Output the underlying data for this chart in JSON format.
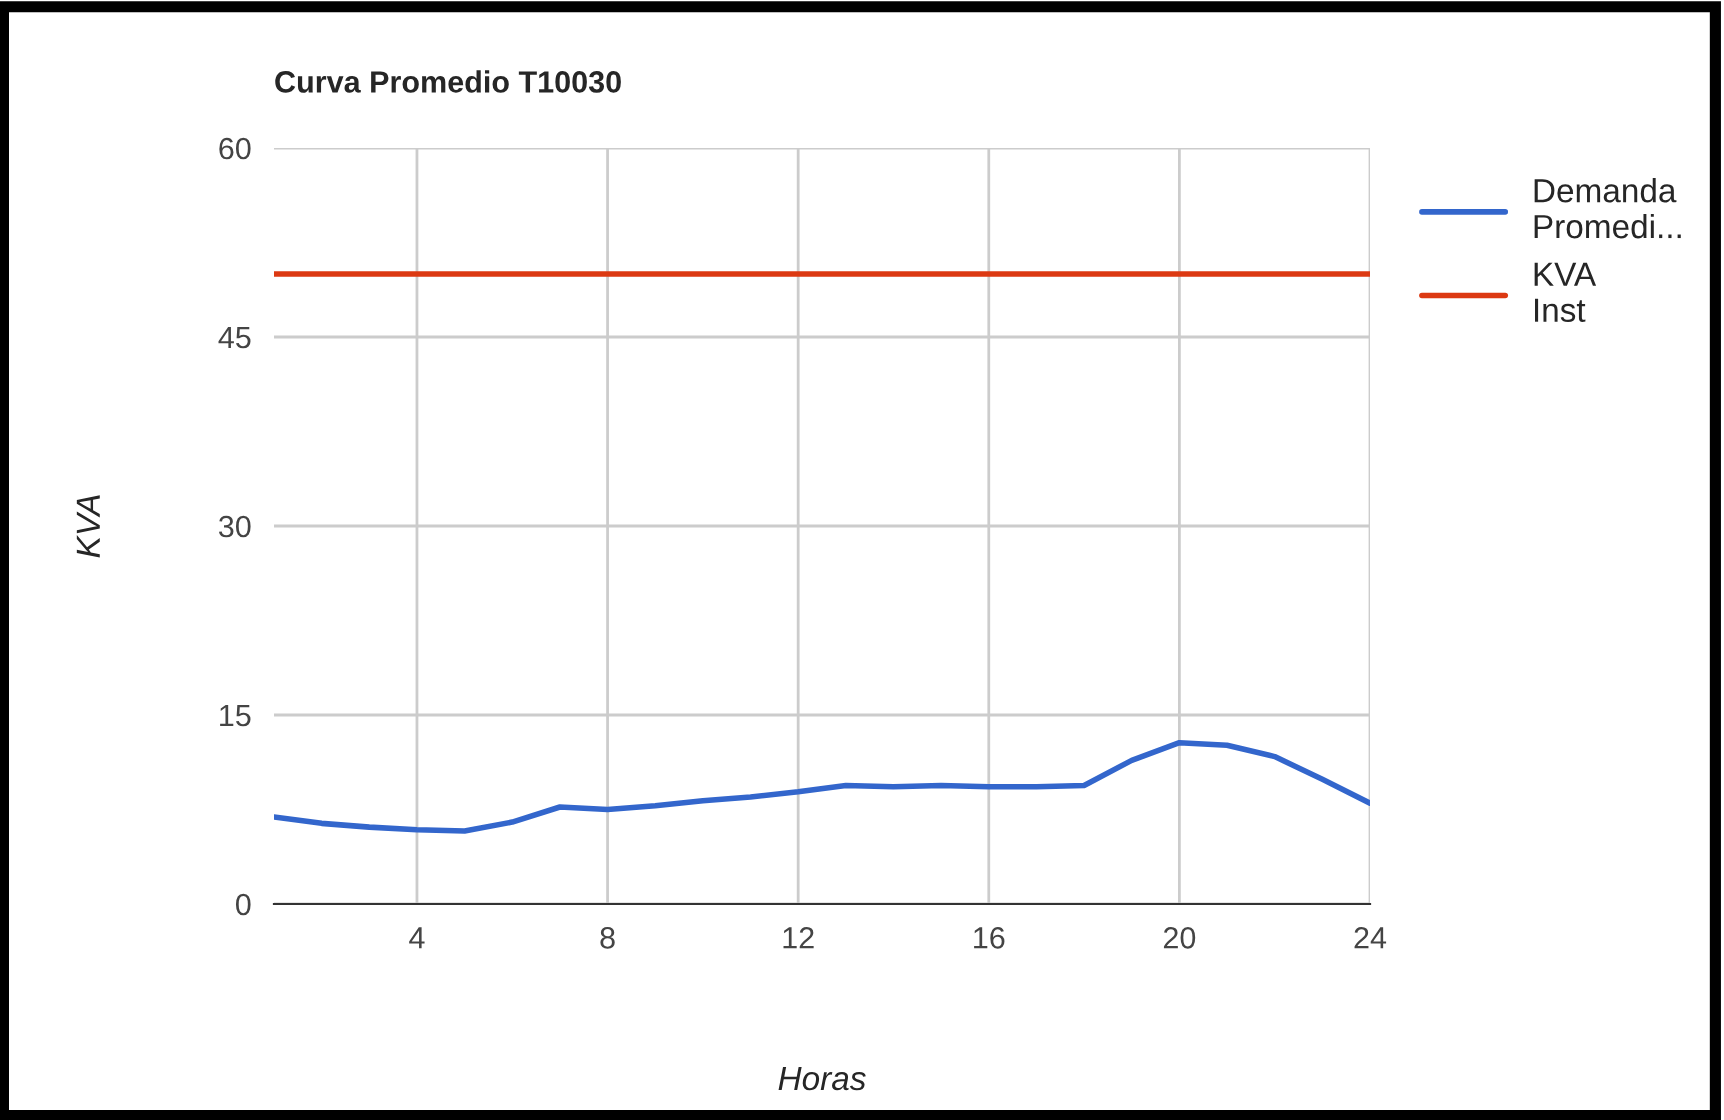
{
  "chart_data": {
    "type": "line",
    "title": "Curva Promedio T10030",
    "xlabel": "Horas",
    "ylabel": "KVA",
    "x": [
      1,
      2,
      3,
      4,
      5,
      6,
      7,
      8,
      9,
      10,
      11,
      12,
      13,
      14,
      15,
      16,
      17,
      18,
      19,
      20,
      21,
      22,
      23,
      24
    ],
    "series": [
      {
        "name": "Demanda Promedi...",
        "color": "#3366cc",
        "values": [
          6.9,
          6.4,
          6.1,
          5.9,
          5.8,
          6.5,
          7.7,
          7.5,
          7.8,
          8.2,
          8.5,
          8.9,
          9.4,
          9.3,
          9.4,
          9.3,
          9.3,
          9.4,
          11.4,
          12.8,
          12.6,
          11.7,
          9.9,
          8.0
        ]
      },
      {
        "name": "KVA Inst",
        "color": "#dc3912",
        "values": [
          50,
          50,
          50,
          50,
          50,
          50,
          50,
          50,
          50,
          50,
          50,
          50,
          50,
          50,
          50,
          50,
          50,
          50,
          50,
          50,
          50,
          50,
          50,
          50
        ]
      }
    ],
    "xlim": [
      1,
      24
    ],
    "xticks": [
      4,
      8,
      12,
      16,
      20,
      24
    ],
    "ylim": [
      0,
      60
    ],
    "yticks": [
      0,
      15,
      30,
      45,
      60
    ],
    "grid": true,
    "legend": "right",
    "marker": "none",
    "line_style": "solid"
  }
}
